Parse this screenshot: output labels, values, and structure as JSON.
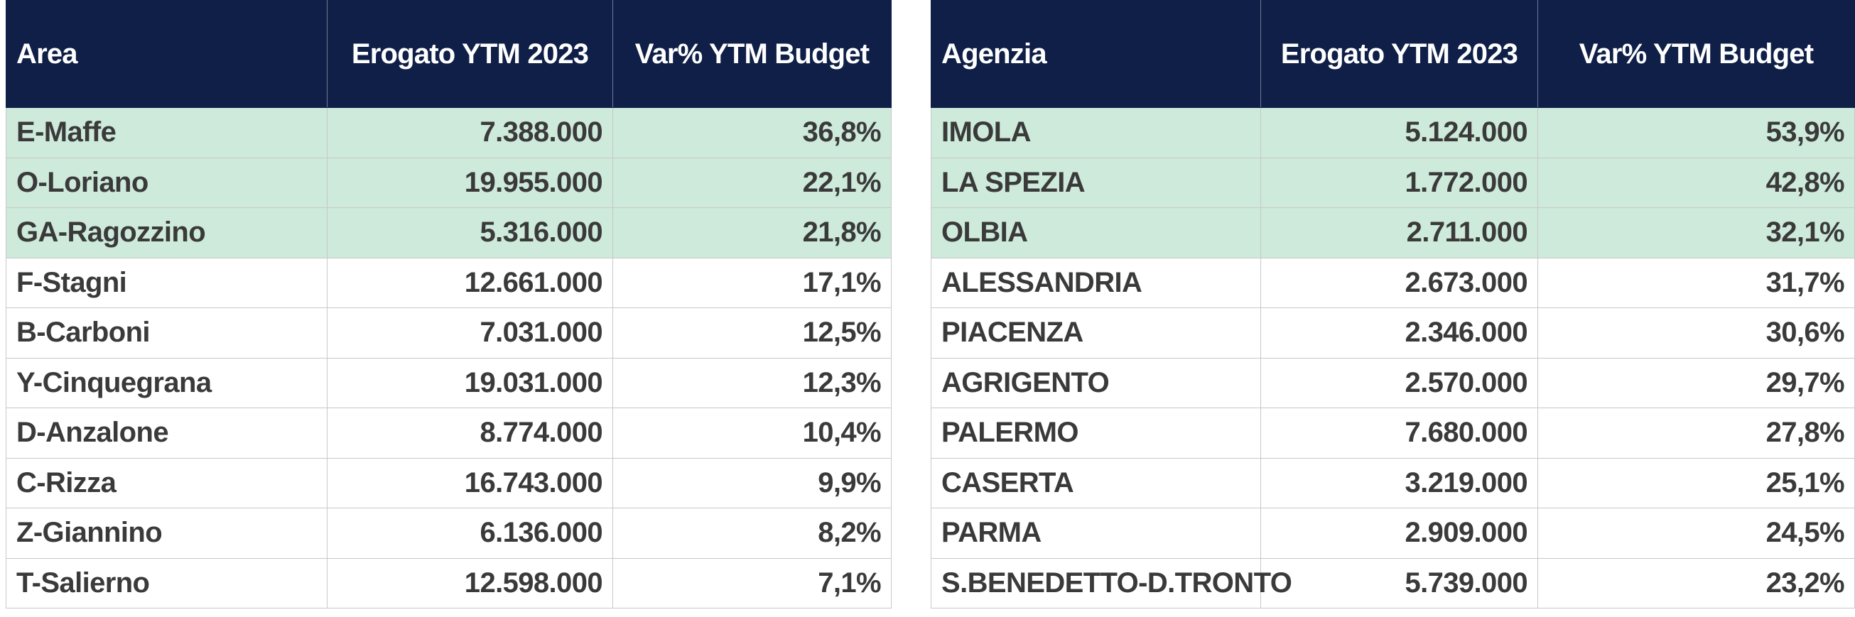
{
  "left_table": {
    "headers": [
      "Area",
      "Erogato YTM 2023",
      "Var% YTM Budget"
    ],
    "rows": [
      {
        "name": "E-Maffe",
        "erogato": "7.388.000",
        "var": "36,8%",
        "highlight": true
      },
      {
        "name": "O-Loriano",
        "erogato": "19.955.000",
        "var": "22,1%",
        "highlight": true
      },
      {
        "name": "GA-Ragozzino",
        "erogato": "5.316.000",
        "var": "21,8%",
        "highlight": true
      },
      {
        "name": "F-Stagni",
        "erogato": "12.661.000",
        "var": "17,1%",
        "highlight": false
      },
      {
        "name": "B-Carboni",
        "erogato": "7.031.000",
        "var": "12,5%",
        "highlight": false
      },
      {
        "name": "Y-Cinquegrana",
        "erogato": "19.031.000",
        "var": "12,3%",
        "highlight": false
      },
      {
        "name": "D-Anzalone",
        "erogato": "8.774.000",
        "var": "10,4%",
        "highlight": false
      },
      {
        "name": "C-Rizza",
        "erogato": "16.743.000",
        "var": "9,9%",
        "highlight": false
      },
      {
        "name": "Z-Giannino",
        "erogato": "6.136.000",
        "var": "8,2%",
        "highlight": false
      },
      {
        "name": "T-Salierno",
        "erogato": "12.598.000",
        "var": "7,1%",
        "highlight": false
      }
    ]
  },
  "right_table": {
    "headers": [
      "Agenzia",
      "Erogato YTM 2023",
      "Var% YTM Budget"
    ],
    "rows": [
      {
        "name": "IMOLA",
        "erogato": "5.124.000",
        "var": "53,9%",
        "highlight": true
      },
      {
        "name": "LA SPEZIA",
        "erogato": "1.772.000",
        "var": "42,8%",
        "highlight": true
      },
      {
        "name": "OLBIA",
        "erogato": "2.711.000",
        "var": "32,1%",
        "highlight": true
      },
      {
        "name": "ALESSANDRIA",
        "erogato": "2.673.000",
        "var": "31,7%",
        "highlight": false
      },
      {
        "name": "PIACENZA",
        "erogato": "2.346.000",
        "var": "30,6%",
        "highlight": false
      },
      {
        "name": "AGRIGENTO",
        "erogato": "2.570.000",
        "var": "29,7%",
        "highlight": false
      },
      {
        "name": "PALERMO",
        "erogato": "7.680.000",
        "var": "27,8%",
        "highlight": false
      },
      {
        "name": "CASERTA",
        "erogato": "3.219.000",
        "var": "25,1%",
        "highlight": false
      },
      {
        "name": "PARMA",
        "erogato": "2.909.000",
        "var": "24,5%",
        "highlight": false
      },
      {
        "name": "S.BENEDETTO-D.TRONTO",
        "erogato": "5.739.000",
        "var": "23,2%",
        "highlight": false
      }
    ]
  },
  "colors": {
    "header_bg": "#0f1f47",
    "header_text": "#ffffff",
    "highlight_row_bg": "#cdeadb",
    "body_text": "#3a3a3a"
  }
}
